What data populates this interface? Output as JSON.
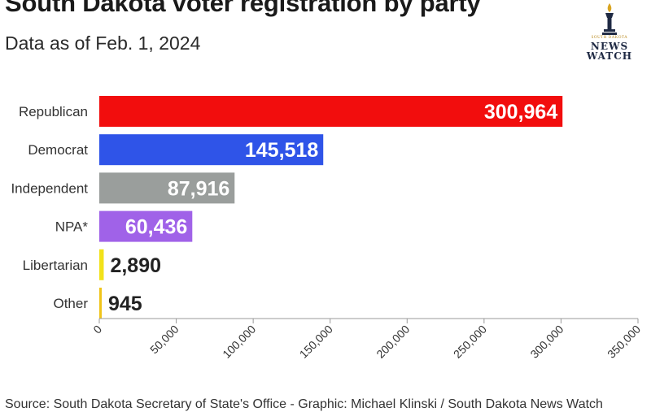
{
  "title": "South Dakota voter registration by party",
  "subtitle": "Data as of Feb. 1, 2024",
  "source": "Source: South Dakota Secretary of State's Office - Graphic: Michael Klinski / South Dakota News Watch",
  "logo": {
    "small": "SOUTH DAKOTA",
    "line1": "NEWS",
    "line2": "WATCH"
  },
  "colors": {
    "republican": "#f20d0d",
    "democrat": "#2f54e8",
    "independent": "#9a9e9c",
    "npa": "#a062e8",
    "libertarian": "#f2e21a",
    "other": "#f0c419",
    "logo_gold": "#d9a521",
    "logo_navy": "#1f2a44"
  },
  "chart_data": {
    "type": "bar",
    "orientation": "horizontal",
    "categories": [
      "Republican",
      "Democrat",
      "Independent",
      "NPA*",
      "Libertarian",
      "Other"
    ],
    "values": [
      300964,
      145518,
      87916,
      60436,
      2890,
      945
    ],
    "value_labels": [
      "300,964",
      "145,518",
      "87,916",
      "60,436",
      "2,890",
      "945"
    ],
    "xlim": [
      0,
      350000
    ],
    "x_ticks": [
      0,
      50000,
      100000,
      150000,
      200000,
      250000,
      300000,
      350000
    ],
    "x_tick_labels": [
      "0",
      "50,000",
      "100,000",
      "150,000",
      "200,000",
      "250,000",
      "300,000",
      "350,000"
    ],
    "grid": false
  }
}
